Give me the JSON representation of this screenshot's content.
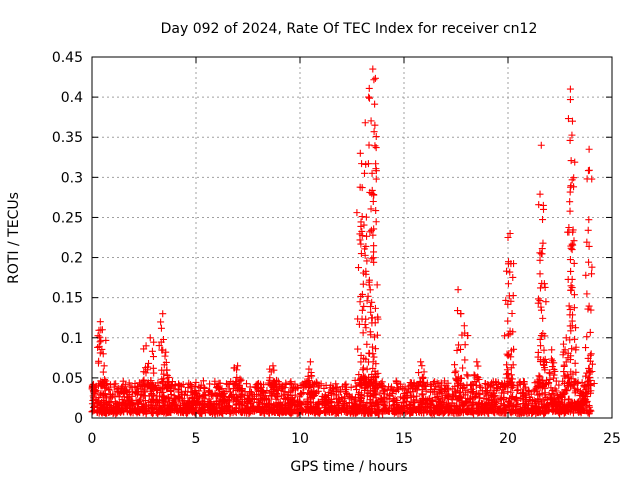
{
  "chart_data": {
    "type": "scatter",
    "title": "Day 092 of 2024, Rate Of TEC Index for receiver cn12",
    "xlabel": "GPS time / hours",
    "ylabel": "ROTI / TECUs",
    "xlim": [
      0,
      25
    ],
    "ylim": [
      0,
      0.45
    ],
    "xticks": [
      0,
      5,
      10,
      15,
      20,
      25
    ],
    "xtick_labels": [
      "0",
      "5",
      "10",
      "15",
      "20",
      "25"
    ],
    "yticks": [
      0,
      0.05,
      0.1,
      0.15,
      0.2,
      0.25,
      0.3,
      0.35,
      0.4,
      0.45
    ],
    "ytick_labels": [
      "0",
      "0.05",
      "0.1",
      "0.15",
      "0.2",
      "0.25",
      "0.3",
      "0.35",
      "0.4",
      "0.45"
    ],
    "grid": true,
    "marker": "+",
    "marker_color": "#ff0000",
    "series": [
      {
        "name": "ROTI",
        "x_range": [
          0,
          24
        ],
        "baseline_band": [
          0.005,
          0.04
        ],
        "peaks": [
          {
            "x": 0.1,
            "y": 0.03
          },
          {
            "x": 0.4,
            "y": 0.12
          },
          {
            "x": 0.5,
            "y": 0.11
          },
          {
            "x": 2.6,
            "y": 0.09
          },
          {
            "x": 2.8,
            "y": 0.1
          },
          {
            "x": 3.4,
            "y": 0.13
          },
          {
            "x": 3.6,
            "y": 0.06
          },
          {
            "x": 7.0,
            "y": 0.065
          },
          {
            "x": 8.7,
            "y": 0.065
          },
          {
            "x": 10.5,
            "y": 0.07
          },
          {
            "x": 12.9,
            "y": 0.33
          },
          {
            "x": 13.1,
            "y": 0.305
          },
          {
            "x": 13.3,
            "y": 0.4
          },
          {
            "x": 13.5,
            "y": 0.435
          },
          {
            "x": 13.6,
            "y": 0.365
          },
          {
            "x": 15.8,
            "y": 0.07
          },
          {
            "x": 17.6,
            "y": 0.16
          },
          {
            "x": 17.9,
            "y": 0.115
          },
          {
            "x": 18.5,
            "y": 0.07
          },
          {
            "x": 20.0,
            "y": 0.225
          },
          {
            "x": 20.1,
            "y": 0.23
          },
          {
            "x": 21.6,
            "y": 0.34
          },
          {
            "x": 21.7,
            "y": 0.265
          },
          {
            "x": 22.1,
            "y": 0.085
          },
          {
            "x": 22.8,
            "y": 0.1
          },
          {
            "x": 23.0,
            "y": 0.41
          },
          {
            "x": 23.1,
            "y": 0.37
          },
          {
            "x": 23.9,
            "y": 0.335
          },
          {
            "x": 24.0,
            "y": 0.08
          }
        ]
      }
    ]
  }
}
